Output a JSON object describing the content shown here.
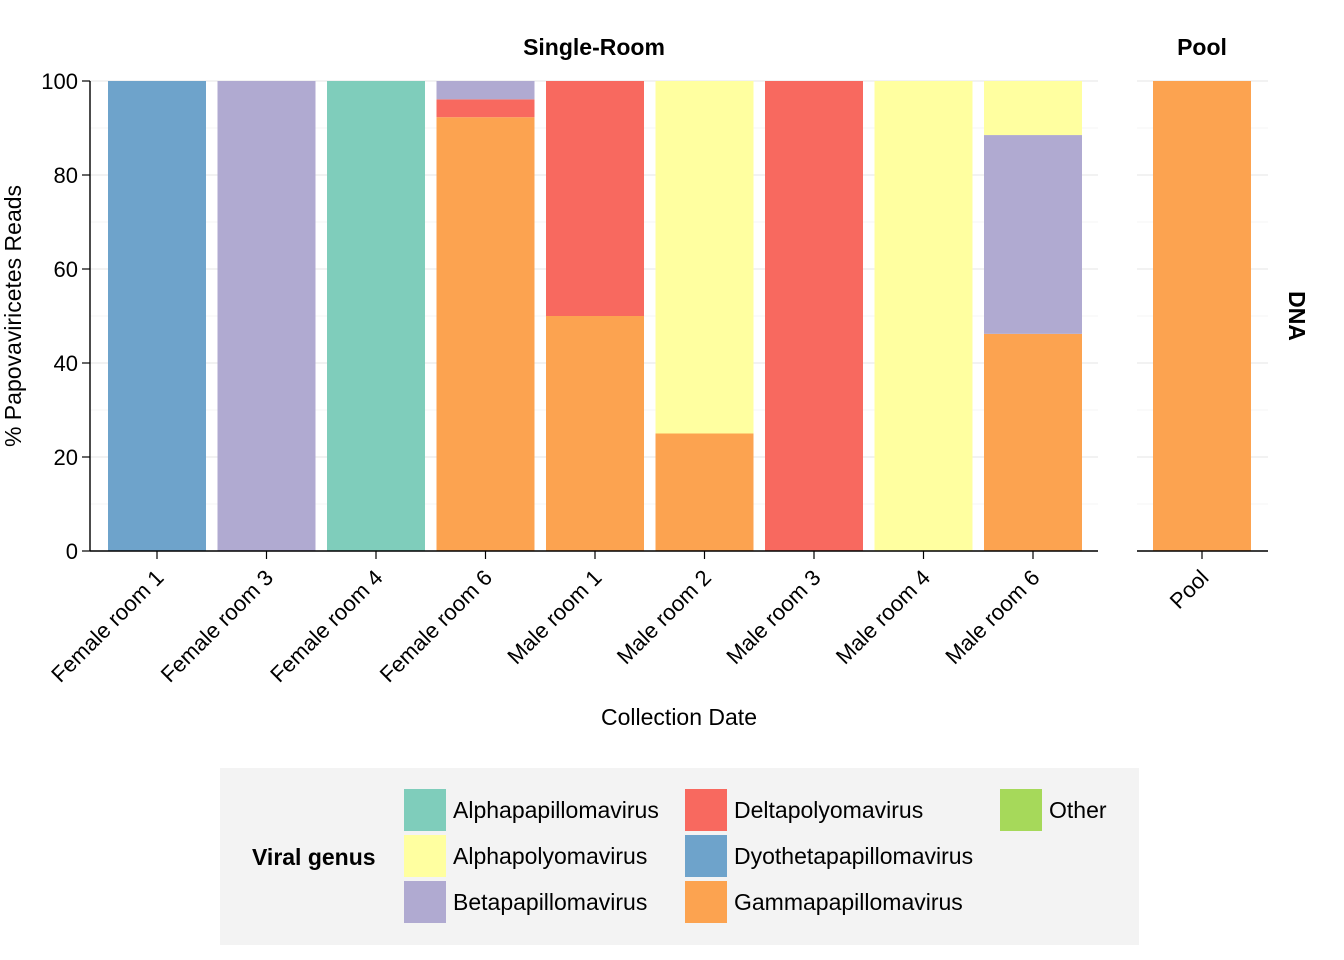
{
  "chart_data": {
    "type": "bar",
    "stacked": true,
    "xlabel": "Collection Date",
    "ylabel": "% Papovaviricetes Reads",
    "ylim": [
      0,
      100
    ],
    "yticks": [
      0,
      20,
      40,
      60,
      80,
      100
    ],
    "grid": true,
    "strip_right": "DNA",
    "legend": {
      "title": "Viral genus",
      "position": "bottom",
      "entries": [
        {
          "name": "Alphapapillomavirus",
          "color": "#7fcdbb"
        },
        {
          "name": "Alphapolyomavirus",
          "color": "#ffffa0"
        },
        {
          "name": "Betapapillomavirus",
          "color": "#b0aad1"
        },
        {
          "name": "Deltapolyomavirus",
          "color": "#f8695f"
        },
        {
          "name": "Dyothetapapillomavirus",
          "color": "#6ea3cb"
        },
        {
          "name": "Gammapapillomavirus",
          "color": "#fca350"
        },
        {
          "name": "Other",
          "color": "#a6d95a"
        }
      ]
    },
    "panels": [
      {
        "title": "Single-Room",
        "categories": [
          "Female room 1",
          "Female room 3",
          "Female room 4",
          "Female room 6",
          "Male room 1",
          "Male room 2",
          "Male room 3",
          "Male room 4",
          "Male room 6"
        ],
        "series": [
          {
            "name": "Gammapapillomavirus",
            "values": [
              0,
              0,
              0,
              92.3,
              50,
              25,
              0,
              0,
              46.2
            ]
          },
          {
            "name": "Dyothetapapillomavirus",
            "values": [
              100,
              0,
              0,
              0,
              0,
              0,
              0,
              0,
              0
            ]
          },
          {
            "name": "Deltapolyomavirus",
            "values": [
              0,
              0,
              0,
              3.8,
              50,
              0,
              100,
              0,
              0
            ]
          },
          {
            "name": "Betapapillomavirus",
            "values": [
              0,
              100,
              0,
              3.9,
              0,
              0,
              0,
              0,
              42.3
            ]
          },
          {
            "name": "Alphapolyomavirus",
            "values": [
              0,
              0,
              0,
              0,
              0,
              75,
              0,
              100,
              11.5
            ]
          },
          {
            "name": "Alphapapillomavirus",
            "values": [
              0,
              0,
              100,
              0,
              0,
              0,
              0,
              0,
              0
            ]
          }
        ]
      },
      {
        "title": "Pool",
        "categories": [
          "Pool"
        ],
        "series": [
          {
            "name": "Gammapapillomavirus",
            "values": [
              100
            ]
          }
        ]
      }
    ]
  }
}
